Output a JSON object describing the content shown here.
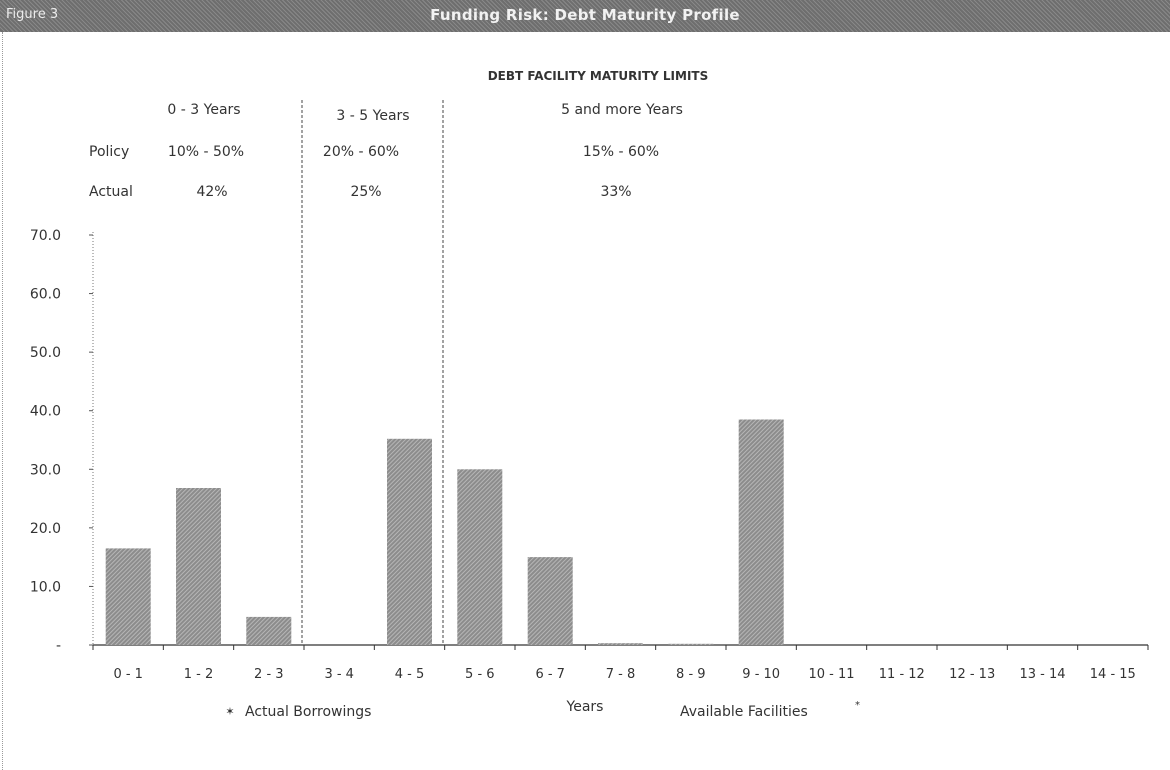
{
  "figure_label": "Figure 3",
  "title": "Funding Risk: Debt Maturity Profile",
  "limits": {
    "heading": "DEBT FACILITY MATURITY LIMITS",
    "policy_label": "Policy",
    "actual_label": "Actual",
    "bands": [
      {
        "name": "0 - 3 Years",
        "policy": "10% - 50%",
        "actual": "42%"
      },
      {
        "name": "3 - 5 Years",
        "policy": "20% - 60%",
        "actual": "25%"
      },
      {
        "name": "5 and more Years",
        "policy": "15% - 60%",
        "actual": "33%"
      }
    ]
  },
  "chart_data": {
    "type": "bar",
    "title": "Funding Risk: Debt Maturity Profile",
    "xlabel": "Years",
    "ylabel": "",
    "ylim": [
      0,
      70
    ],
    "y_ticks": [
      "-",
      "10.0",
      "20.0",
      "30.0",
      "40.0",
      "50.0",
      "60.0",
      "70.0"
    ],
    "categories": [
      "0 - 1",
      "1 - 2",
      "2 - 3",
      "3 - 4",
      "4 - 5",
      "5 - 6",
      "6 - 7",
      "7 - 8",
      "8 - 9",
      "9 - 10",
      "10 - 11",
      "11 - 12",
      "12 - 13",
      "13 - 14",
      "14 - 15"
    ],
    "series": [
      {
        "name": "Actual Borrowings",
        "values": [
          16.5,
          26.8,
          4.8,
          0,
          35.2,
          30.0,
          15.0,
          0.3,
          0.2,
          38.5,
          0,
          0,
          0,
          0,
          0
        ]
      }
    ],
    "legend": [
      "Actual Borrowings",
      "Available Facilities"
    ],
    "legend_placement": "bottom",
    "grid": false,
    "bar_color": "#8c8c8c"
  }
}
